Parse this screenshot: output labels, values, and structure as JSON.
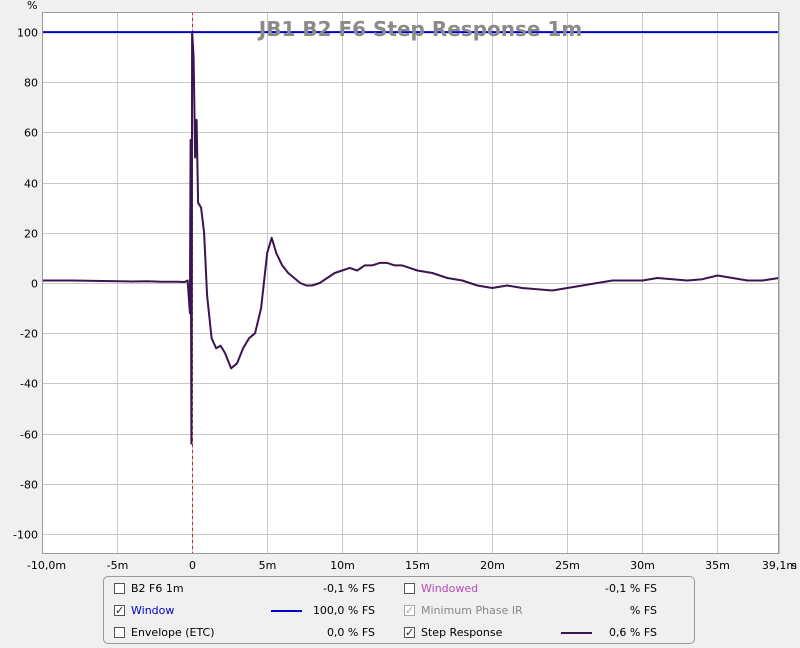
{
  "chart_data": {
    "type": "line",
    "title": "JB1 B2 F6 Step Response 1m",
    "ylabel": "%",
    "xlabel_unit": "s",
    "xlim": [
      -10,
      39.1
    ],
    "ylim": [
      -108,
      108
    ],
    "x_ticks": [
      {
        "v": -10,
        "label": "-10,0m"
      },
      {
        "v": -5,
        "label": "-5m"
      },
      {
        "v": 0,
        "label": "0"
      },
      {
        "v": 5,
        "label": "5m"
      },
      {
        "v": 10,
        "label": "10m"
      },
      {
        "v": 15,
        "label": "15m"
      },
      {
        "v": 20,
        "label": "20m"
      },
      {
        "v": 25,
        "label": "25m"
      },
      {
        "v": 30,
        "label": "30m"
      },
      {
        "v": 35,
        "label": "35m"
      },
      {
        "v": 39.1,
        "label": "39,1m"
      }
    ],
    "y_ticks": [
      100,
      80,
      60,
      40,
      20,
      0,
      -20,
      -40,
      -60,
      -80,
      -100
    ],
    "grid": true,
    "marker_x": 0,
    "series": [
      {
        "name": "Window",
        "color": "#0000cc",
        "x": [
          -10,
          39.1
        ],
        "y": [
          100,
          100
        ]
      },
      {
        "name": "Step Response",
        "color": "#3a1552",
        "x": [
          -10,
          -8,
          -6,
          -4,
          -3,
          -2,
          -1,
          -0.5,
          -0.3,
          -0.15,
          -0.1,
          -0.05,
          -0.02,
          0,
          0.05,
          0.1,
          0.15,
          0.2,
          0.3,
          0.4,
          0.6,
          0.8,
          1.0,
          1.3,
          1.6,
          1.9,
          2.2,
          2.6,
          3.0,
          3.4,
          3.8,
          4.2,
          4.6,
          5.0,
          5.3,
          5.6,
          6.0,
          6.4,
          6.8,
          7.2,
          7.6,
          8.0,
          8.5,
          9.0,
          9.5,
          10.0,
          10.5,
          11.0,
          11.5,
          12.0,
          12.5,
          13.0,
          13.5,
          14.0,
          14.5,
          15.0,
          16.0,
          17.0,
          18.0,
          19.0,
          20.0,
          21.0,
          22.0,
          23.0,
          24.0,
          25.0,
          26.0,
          27.0,
          28.0,
          29.0,
          30.0,
          31.0,
          32.0,
          33.0,
          34.0,
          35.0,
          36.0,
          37.0,
          38.0,
          39.1
        ],
        "y": [
          1,
          1,
          0.8,
          0.6,
          0.7,
          0.5,
          0.5,
          0.4,
          1,
          -12,
          57,
          -64,
          3,
          100,
          95,
          90,
          70,
          50,
          65,
          32,
          30,
          20,
          -5,
          -22,
          -26,
          -25,
          -28,
          -34,
          -32,
          -26,
          -22,
          -20,
          -10,
          12,
          18,
          12,
          7,
          4,
          2,
          0,
          -1,
          -1,
          0,
          2,
          4,
          5,
          6,
          5,
          7,
          7,
          8,
          8,
          7,
          7,
          6,
          5,
          4,
          2,
          1,
          -1,
          -2,
          -1,
          -2,
          -2.5,
          -3,
          -2,
          -1,
          0,
          1,
          1,
          1,
          2,
          1.5,
          1,
          1.5,
          3,
          2,
          1,
          1,
          2
        ]
      }
    ]
  },
  "legend": {
    "items": [
      {
        "label": "B2 F6 1m",
        "checked": false,
        "disabled": false,
        "value": "-0,1 % FS",
        "color": "#8b2f8b",
        "label_color": "#000000"
      },
      {
        "label": "Windowed",
        "checked": false,
        "disabled": false,
        "value": "-0,1 % FS",
        "color": "#cc44cc",
        "label_color": "#b84ab8"
      },
      {
        "label": "Window",
        "checked": true,
        "disabled": false,
        "value": "100,0 % FS",
        "color": "#0000cc",
        "label_color": "#0000cc"
      },
      {
        "label": "Minimum Phase IR",
        "checked": true,
        "disabled": true,
        "value": "% FS",
        "color": "#888888",
        "label_color": "#888888"
      },
      {
        "label": "Envelope (ETC)",
        "checked": false,
        "disabled": false,
        "value": "0,0 % FS",
        "color": "#000000",
        "label_color": "#000000"
      },
      {
        "label": "Step Response",
        "checked": true,
        "disabled": false,
        "value": "0,6 % FS",
        "color": "#3a1552",
        "label_color": "#000000"
      }
    ]
  }
}
